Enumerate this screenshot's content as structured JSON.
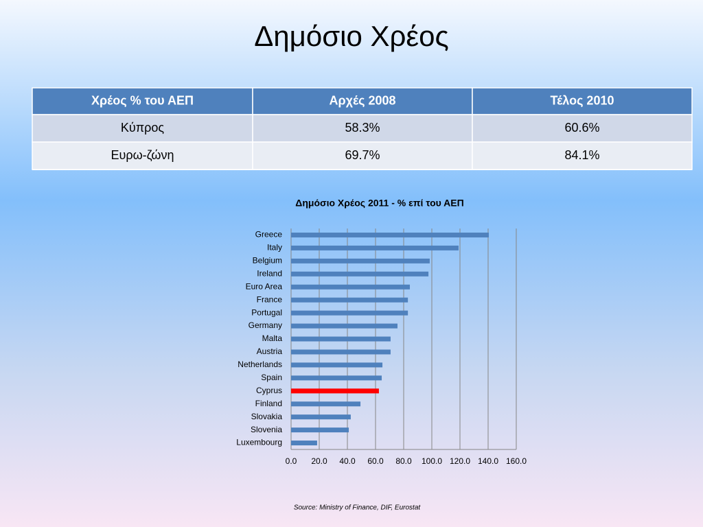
{
  "title": "Δημόσιο Χρέος",
  "table": {
    "header": [
      "Χρέος  % του ΑΕΠ",
      "Αρχές 2008",
      "Τέλος 2010"
    ],
    "rows": [
      [
        "Κύπρος",
        "58.3%",
        "60.6%"
      ],
      [
        "Ευρω-ζώνη",
        "69.7%",
        "84.1%"
      ]
    ]
  },
  "chart_data": {
    "type": "hbar",
    "title": "Δημόσιο Χρέος 2011 - % επί του ΑΕΠ",
    "categories": [
      "Greece",
      "Italy",
      "Belgium",
      "Ireland",
      "Euro Area",
      "France",
      "Portugal",
      "Germany",
      "Malta",
      "Austria",
      "Netherlands",
      "Spain",
      "Cyprus",
      "Finland",
      "Slovakia",
      "Slovenia",
      "Luxembourg"
    ],
    "values": [
      140.5,
      119,
      98.5,
      97.6,
      84.4,
      83,
      83,
      75.6,
      70.7,
      70.7,
      64.9,
      64.4,
      62.4,
      49.3,
      42.4,
      41,
      18.5
    ],
    "colors": [
      "#4f81bd",
      "#4f81bd",
      "#4f81bd",
      "#4f81bd",
      "#4f81bd",
      "#4f81bd",
      "#4f81bd",
      "#4f81bd",
      "#4f81bd",
      "#4f81bd",
      "#4f81bd",
      "#4f81bd",
      "#ff0000",
      "#4f81bd",
      "#4f81bd",
      "#4f81bd",
      "#4f81bd"
    ],
    "xlim": [
      0,
      160
    ],
    "xticks": [
      {
        "value": 0,
        "label": "0.0"
      },
      {
        "value": 20,
        "label": "20.0"
      },
      {
        "value": 40,
        "label": "40.0"
      },
      {
        "value": 60,
        "label": "60.0"
      },
      {
        "value": 80,
        "label": "80.0"
      },
      {
        "value": 100,
        "label": "100.0"
      },
      {
        "value": 120,
        "label": "120.0"
      },
      {
        "value": 140,
        "label": "140.0"
      },
      {
        "value": 160,
        "label": "160.0"
      }
    ],
    "grid": true
  },
  "source": "Source: Ministry of Finance, DIF, Eurostat"
}
